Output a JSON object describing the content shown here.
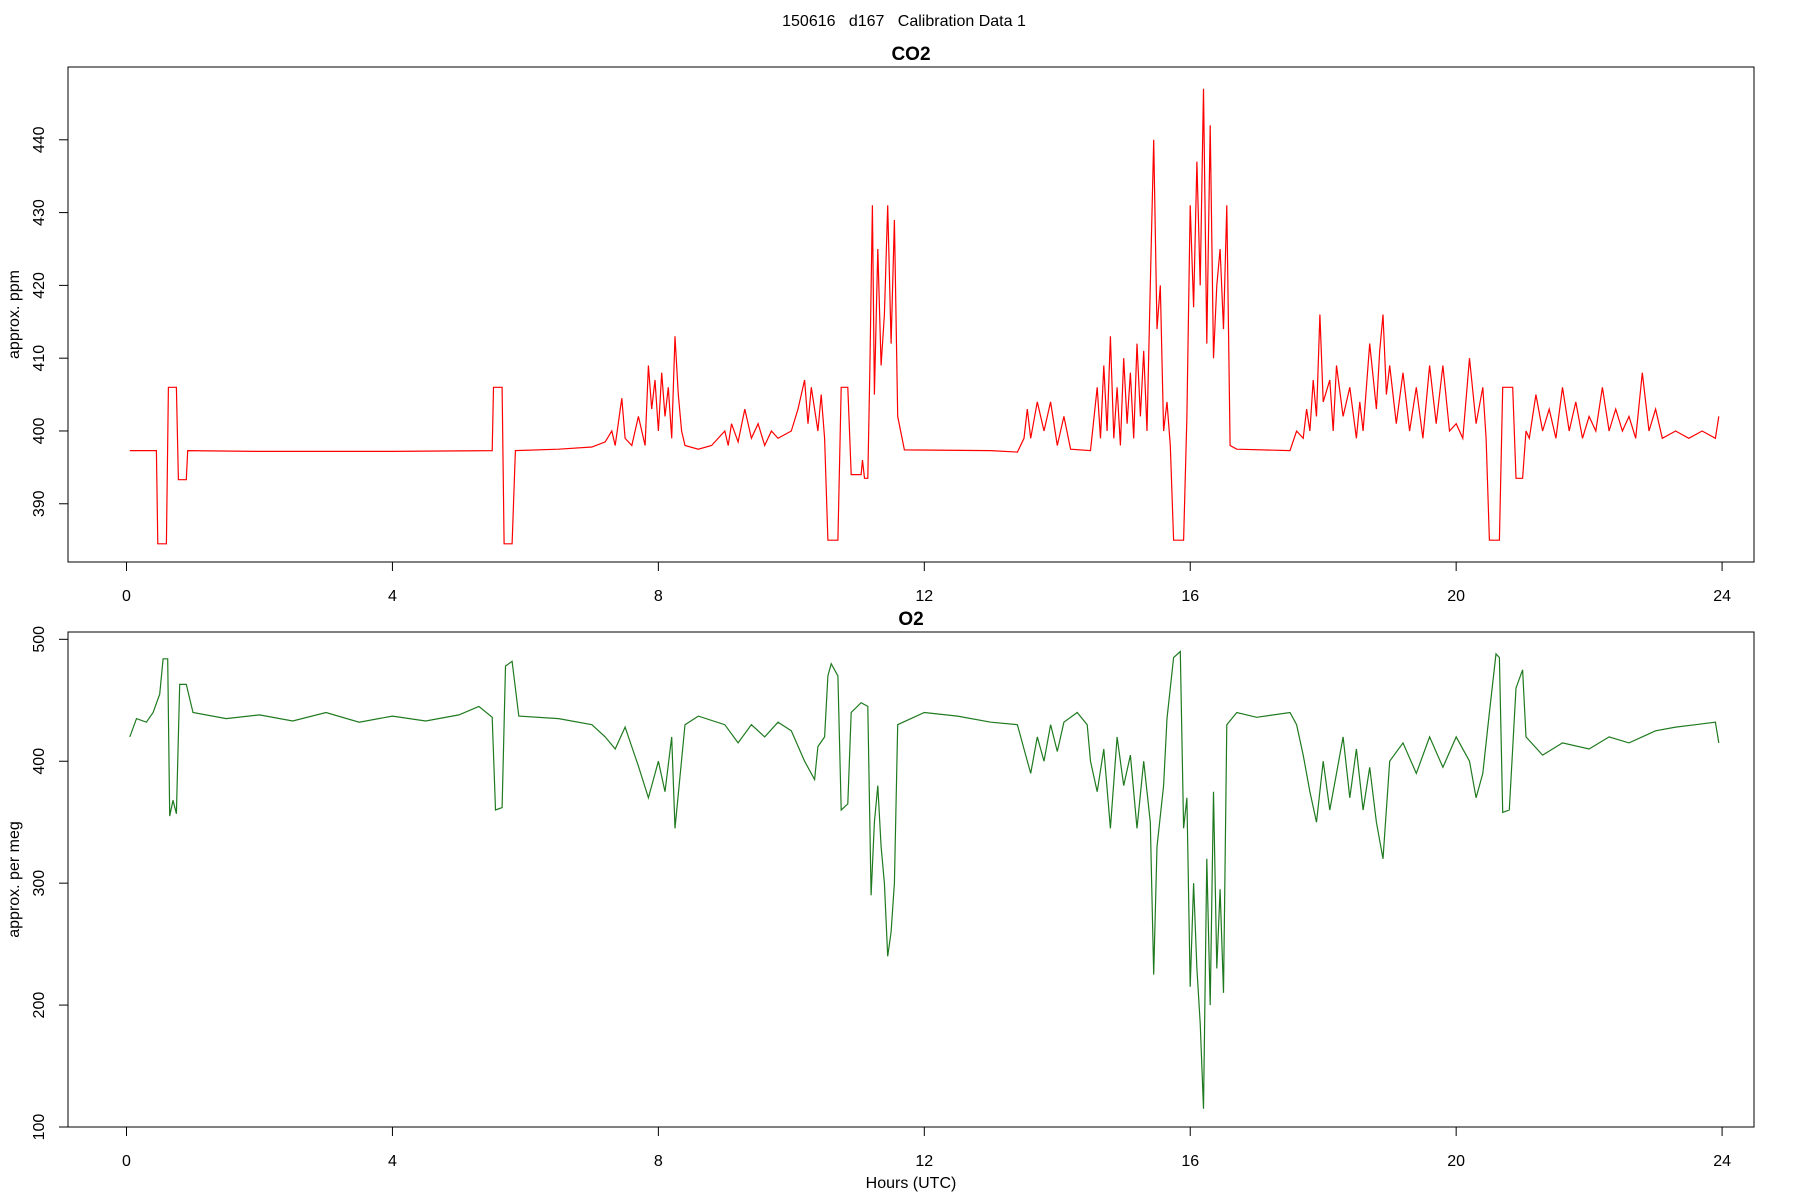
{
  "title": "150616   d167   Calibration Data 1",
  "chart_data": [
    {
      "type": "line",
      "title": "CO2",
      "y_label": "approx. ppm",
      "xlim": [
        -0.88,
        24.48
      ],
      "xticks": [
        0,
        4,
        8,
        12,
        16,
        20,
        24
      ],
      "ylim": [
        382,
        450
      ],
      "yticks": [
        390,
        400,
        410,
        420,
        430,
        440
      ],
      "x": [
        0.05,
        0.45,
        0.47,
        0.6,
        0.63,
        0.75,
        0.78,
        0.9,
        0.92,
        2,
        4,
        5.5,
        5.52,
        5.65,
        5.68,
        5.8,
        5.85,
        6.5,
        7.0,
        7.2,
        7.3,
        7.35,
        7.45,
        7.5,
        7.6,
        7.7,
        7.8,
        7.85,
        7.9,
        7.95,
        8.0,
        8.05,
        8.1,
        8.15,
        8.2,
        8.25,
        8.3,
        8.35,
        8.4,
        8.6,
        8.8,
        9.0,
        9.05,
        9.1,
        9.2,
        9.3,
        9.4,
        9.5,
        9.6,
        9.7,
        9.8,
        10.0,
        10.1,
        10.2,
        10.25,
        10.3,
        10.4,
        10.45,
        10.5,
        10.55,
        10.7,
        10.75,
        10.85,
        10.9,
        11.05,
        11.07,
        11.1,
        11.15,
        11.18,
        11.22,
        11.25,
        11.3,
        11.35,
        11.4,
        11.45,
        11.5,
        11.55,
        11.6,
        11.7,
        13,
        13.4,
        13.5,
        13.55,
        13.6,
        13.7,
        13.8,
        13.9,
        14.0,
        14.1,
        14.2,
        14.5,
        14.6,
        14.65,
        14.7,
        14.75,
        14.8,
        14.85,
        14.9,
        14.95,
        15.0,
        15.05,
        15.1,
        15.15,
        15.2,
        15.25,
        15.3,
        15.35,
        15.4,
        15.45,
        15.5,
        15.55,
        15.6,
        15.65,
        15.7,
        15.75,
        15.9,
        15.95,
        16.0,
        16.05,
        16.1,
        16.15,
        16.2,
        16.25,
        16.3,
        16.35,
        16.4,
        16.45,
        16.5,
        16.55,
        16.6,
        16.7,
        17.5,
        17.6,
        17.7,
        17.75,
        17.8,
        17.85,
        17.9,
        17.95,
        18.0,
        18.1,
        18.15,
        18.2,
        18.3,
        18.4,
        18.5,
        18.55,
        18.6,
        18.7,
        18.8,
        18.85,
        18.9,
        18.95,
        19.0,
        19.1,
        19.2,
        19.3,
        19.4,
        19.5,
        19.6,
        19.7,
        19.8,
        19.9,
        20.0,
        20.1,
        20.2,
        20.3,
        20.4,
        20.45,
        20.5,
        20.65,
        20.7,
        20.85,
        20.9,
        21.0,
        21.05,
        21.1,
        21.2,
        21.3,
        21.4,
        21.5,
        21.6,
        21.7,
        21.8,
        21.9,
        22.0,
        22.1,
        22.2,
        22.3,
        22.4,
        22.5,
        22.6,
        22.7,
        22.8,
        22.9,
        23.0,
        23.1,
        23.3,
        23.5,
        23.7,
        23.9,
        23.95
      ],
      "series": [
        {
          "color": "#ff0000",
          "values": [
            397.3,
            397.3,
            384.5,
            384.5,
            406,
            406,
            393.3,
            393.3,
            397.3,
            397.2,
            397.2,
            397.3,
            406,
            406,
            384.5,
            384.5,
            397.3,
            397.5,
            397.8,
            398.5,
            400,
            398,
            404.5,
            399,
            398,
            402,
            398,
            409,
            403,
            407,
            400,
            408,
            402,
            406,
            399,
            413,
            405,
            400,
            398,
            397.5,
            398,
            400,
            398,
            401,
            398.5,
            403,
            399,
            401,
            398,
            400,
            399,
            400,
            403,
            407,
            401,
            406,
            400,
            405,
            399,
            385,
            385,
            406,
            406,
            394,
            394,
            396,
            393.5,
            393.5,
            408,
            431,
            405,
            425,
            409,
            416,
            431,
            412,
            429,
            402,
            397.4,
            397.3,
            397.1,
            399,
            403,
            399,
            404,
            400,
            404,
            398,
            402,
            397.5,
            397.3,
            406,
            399,
            409,
            400,
            413,
            399,
            406,
            398,
            410,
            401,
            408,
            399,
            412,
            402,
            411,
            400,
            420,
            440,
            414,
            420,
            400,
            404,
            398,
            385,
            385,
            402,
            431,
            417,
            437,
            420,
            447,
            412,
            442,
            410,
            420,
            425,
            414,
            431,
            398,
            397.5,
            397.3,
            400,
            399,
            403,
            400,
            407,
            402,
            416,
            404,
            407,
            400,
            409,
            402,
            406,
            399,
            404,
            400,
            412,
            403,
            411,
            416,
            405,
            409,
            401,
            408,
            400,
            406,
            399,
            409,
            401,
            409,
            400,
            401,
            399,
            410,
            401,
            406,
            399,
            385,
            385,
            406,
            406,
            393.5,
            393.5,
            400,
            399,
            405,
            400,
            403,
            399,
            406,
            400,
            404,
            399,
            402,
            400,
            406,
            400,
            403,
            400,
            402,
            399,
            408,
            400,
            403,
            399,
            400,
            399,
            400,
            399,
            402
          ]
        }
      ]
    },
    {
      "type": "line",
      "title": "O2",
      "y_label": "approx. per meg",
      "x_label": "Hours (UTC)",
      "xlim": [
        -0.88,
        24.48
      ],
      "xticks": [
        0,
        4,
        8,
        12,
        16,
        20,
        24
      ],
      "ylim": [
        100,
        506
      ],
      "yticks": [
        100,
        200,
        300,
        400,
        500
      ],
      "x": [
        0.05,
        0.15,
        0.3,
        0.4,
        0.5,
        0.55,
        0.62,
        0.65,
        0.7,
        0.75,
        0.8,
        0.9,
        1.0,
        1.5,
        2.0,
        2.5,
        3.0,
        3.5,
        4.0,
        4.5,
        5.0,
        5.3,
        5.5,
        5.55,
        5.65,
        5.7,
        5.8,
        5.9,
        6.5,
        7.0,
        7.2,
        7.35,
        7.5,
        7.7,
        7.85,
        8.0,
        8.1,
        8.2,
        8.25,
        8.4,
        8.6,
        9.0,
        9.2,
        9.4,
        9.6,
        9.8,
        10.0,
        10.2,
        10.35,
        10.4,
        10.5,
        10.55,
        10.6,
        10.7,
        10.75,
        10.85,
        10.9,
        11.05,
        11.15,
        11.2,
        11.25,
        11.3,
        11.35,
        11.4,
        11.45,
        11.5,
        11.55,
        11.6,
        11.8,
        12.0,
        12.5,
        13,
        13.4,
        13.5,
        13.6,
        13.7,
        13.8,
        13.9,
        14.0,
        14.1,
        14.3,
        14.45,
        14.5,
        14.6,
        14.7,
        14.8,
        14.9,
        15.0,
        15.1,
        15.2,
        15.3,
        15.4,
        15.45,
        15.5,
        15.6,
        15.65,
        15.75,
        15.85,
        15.9,
        15.95,
        16.0,
        16.05,
        16.1,
        16.15,
        16.2,
        16.25,
        16.3,
        16.35,
        16.4,
        16.45,
        16.5,
        16.55,
        16.7,
        17.0,
        17.5,
        17.6,
        17.7,
        17.8,
        17.9,
        18.0,
        18.1,
        18.2,
        18.3,
        18.4,
        18.5,
        18.6,
        18.7,
        18.8,
        18.9,
        19.0,
        19.2,
        19.4,
        19.6,
        19.8,
        20.0,
        20.2,
        20.3,
        20.4,
        20.5,
        20.6,
        20.65,
        20.7,
        20.8,
        20.9,
        21.0,
        21.05,
        21.3,
        21.6,
        22.0,
        22.3,
        22.6,
        23.0,
        23.3,
        23.6,
        23.9,
        23.95
      ],
      "series": [
        {
          "color": "#1f7a1f",
          "values": [
            420,
            435,
            432,
            440,
            455,
            484,
            484,
            355,
            368,
            357,
            463,
            463,
            440,
            435,
            438,
            433,
            440,
            432,
            437,
            433,
            438,
            445,
            436,
            360,
            362,
            478,
            482,
            437,
            435,
            430,
            420,
            410,
            428,
            396,
            370,
            400,
            375,
            420,
            345,
            430,
            437,
            430,
            415,
            430,
            420,
            432,
            425,
            400,
            385,
            412,
            420,
            470,
            480,
            470,
            360,
            365,
            440,
            448,
            445,
            290,
            350,
            380,
            330,
            300,
            240,
            260,
            300,
            430,
            435,
            440,
            437,
            432,
            430,
            410,
            390,
            420,
            400,
            430,
            408,
            432,
            440,
            430,
            400,
            375,
            410,
            345,
            420,
            380,
            405,
            345,
            400,
            350,
            225,
            330,
            380,
            435,
            485,
            490,
            345,
            370,
            215,
            300,
            230,
            185,
            115,
            320,
            200,
            375,
            230,
            295,
            210,
            430,
            440,
            436,
            440,
            430,
            405,
            375,
            350,
            400,
            360,
            390,
            420,
            370,
            410,
            360,
            395,
            350,
            320,
            400,
            415,
            390,
            420,
            395,
            420,
            400,
            370,
            390,
            440,
            488,
            485,
            358,
            360,
            460,
            475,
            420,
            405,
            415,
            410,
            420,
            415,
            425,
            428,
            430,
            432,
            415
          ]
        }
      ]
    }
  ]
}
